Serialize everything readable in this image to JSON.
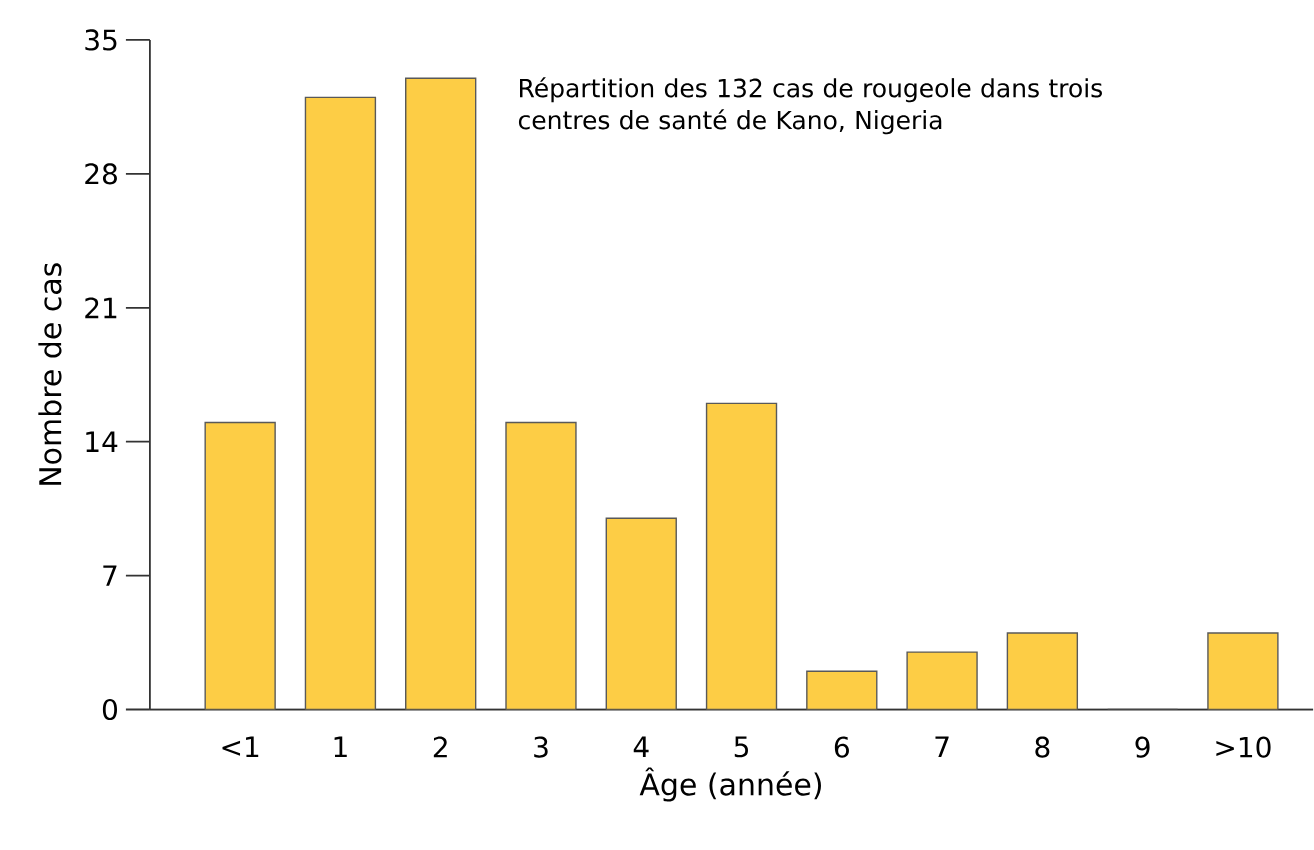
{
  "chart_data": {
    "type": "bar",
    "xlabel": "Âge (année)",
    "ylabel": "Nombre de cas",
    "annotations": [
      "Répartition des 132 cas de rougeole dans trois centres de santé de Kano, Nigeria"
    ],
    "categories": [
      "<1",
      "1",
      "2",
      "3",
      "4",
      "5",
      "6",
      "7",
      "8",
      "9",
      ">10"
    ],
    "values": [
      15,
      32,
      33,
      15,
      10,
      16,
      2,
      3,
      4,
      0,
      4
    ],
    "color": "#fdcd45",
    "ylim": [
      0,
      35
    ],
    "yticks": [
      0,
      7,
      14,
      21,
      28,
      35
    ],
    "grid": false
  }
}
